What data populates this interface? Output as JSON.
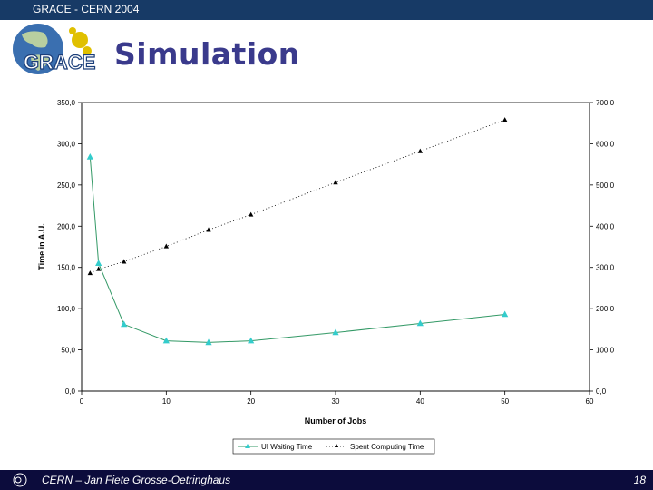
{
  "header": {
    "title": "GRACE - CERN 2004"
  },
  "slide": {
    "title": "Simulation",
    "logo_text": "GRACE"
  },
  "footer": {
    "author": "CERN – Jan Fiete Grosse-Oetringhaus",
    "page": "18"
  },
  "colors": {
    "header_bar": "#173a66",
    "footer_bar": "#0c0c3c",
    "title": "#3a3a8c",
    "series1": "#339966",
    "series1_marker": "#33cccc",
    "series2": "#000000"
  },
  "chart_data": {
    "type": "line",
    "xlabel": "Number of Jobs",
    "ylabel": "Time in A.U.",
    "xlim": [
      0,
      60
    ],
    "ylim_left": [
      0,
      350
    ],
    "ylim_right": [
      0,
      700
    ],
    "x_ticks": [
      "0",
      "10",
      "20",
      "30",
      "40",
      "50",
      "60"
    ],
    "y_left_ticks": [
      "0,0",
      "50,0",
      "100,0",
      "150,0",
      "200,0",
      "250,0",
      "300,0",
      "350,0"
    ],
    "y_right_ticks": [
      "0,0",
      "100,0",
      "200,0",
      "300,0",
      "400,0",
      "500,0",
      "600,0",
      "700,0"
    ],
    "grid": false,
    "legend_position": "bottom",
    "series": [
      {
        "name": "UI Waiting Time",
        "axis": "left",
        "style": "solid",
        "marker": "triangle",
        "x": [
          1,
          2,
          5,
          10,
          15,
          20,
          30,
          40,
          50
        ],
        "values": [
          284,
          155,
          81,
          61,
          59,
          61,
          71,
          82,
          93
        ]
      },
      {
        "name": "Spent Computing Time",
        "axis": "right",
        "style": "dotted",
        "marker": "triangle",
        "x": [
          1,
          2,
          5,
          10,
          15,
          20,
          30,
          40,
          50
        ],
        "values": [
          286,
          296,
          314,
          351,
          391,
          428,
          506,
          582,
          658
        ]
      }
    ]
  }
}
